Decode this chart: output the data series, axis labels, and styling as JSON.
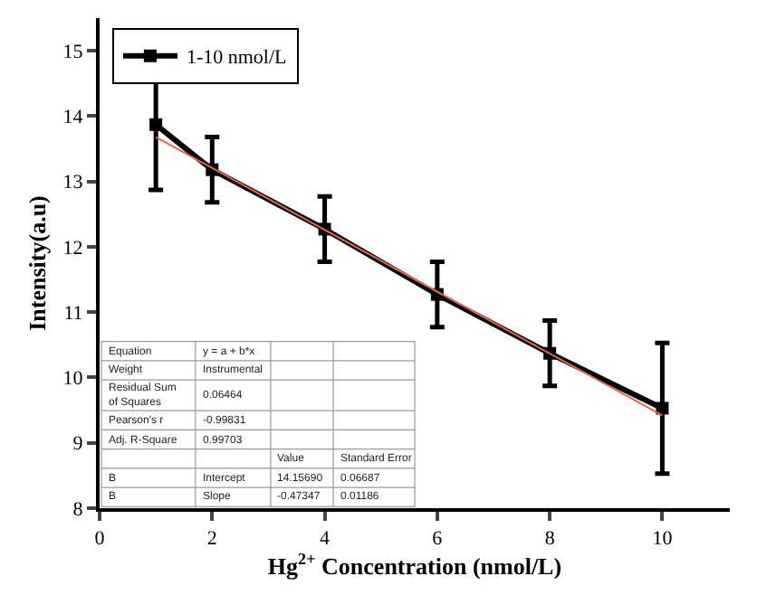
{
  "chart_data": {
    "type": "line",
    "xlabel": "Hg$^{2+}$ Concentration (nmol/L)",
    "ylabel": "Intensity(a.u)",
    "x": [
      1,
      2,
      4,
      6,
      8,
      10
    ],
    "series": [
      {
        "name": "1-10 nmol/L",
        "color": "#000000",
        "values": [
          13.87,
          13.18,
          12.27,
          11.27,
          10.37,
          9.53
        ],
        "errors": [
          1.0,
          0.5,
          0.5,
          0.5,
          0.5,
          1.0
        ],
        "marker": "square"
      },
      {
        "type": "line",
        "color": "#e8664a",
        "x": [
          1,
          10
        ],
        "values": [
          13.68,
          9.42
        ],
        "marker": "none"
      }
    ],
    "xlim": [
      0,
      11.2
    ],
    "xticks": [
      0,
      2,
      4,
      6,
      8,
      10
    ],
    "ylim": [
      8,
      15.5
    ],
    "yticks": [
      8,
      9,
      10,
      11,
      12,
      13,
      14,
      15
    ],
    "legend": "top left",
    "annotations": [
      "Equation",
      "y = a + b*x",
      "Weight",
      "Instrumental",
      "Residual Sum of Squares",
      "0.06464",
      "Pearson's r",
      "-0.99831",
      "Adj. R-Square",
      "0.99703",
      "Value",
      "Standard Error",
      "B",
      "Intercept",
      "14.15690",
      "0.06687",
      "B",
      "Slope",
      "-0.47347",
      "0.01186"
    ]
  }
}
